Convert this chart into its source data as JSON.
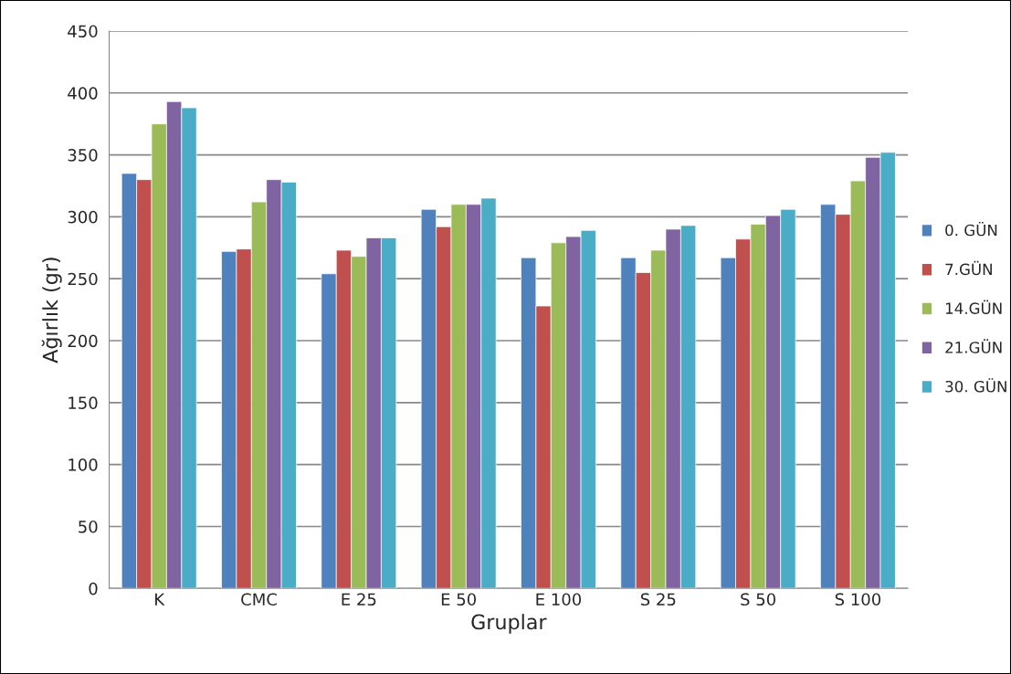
{
  "chart_data": {
    "type": "bar",
    "xlabel": "Gruplar",
    "ylabel": "Ağırlık (gr)",
    "categories": [
      "K",
      "CMC",
      "E 25",
      "E 50",
      "E 100",
      "S 25",
      "S 50",
      "S 100"
    ],
    "series": [
      {
        "name": "0. GÜN",
        "color": "#4f81bd",
        "values": [
          335,
          272,
          254,
          306,
          267,
          267,
          267,
          310
        ]
      },
      {
        "name": "7.GÜN",
        "color": "#c0504d",
        "values": [
          330,
          274,
          273,
          292,
          228,
          255,
          282,
          302
        ]
      },
      {
        "name": "14.GÜN",
        "color": "#9bbb59",
        "values": [
          375,
          312,
          268,
          310,
          279,
          273,
          294,
          329
        ]
      },
      {
        "name": "21.GÜN",
        "color": "#8064a2",
        "values": [
          393,
          330,
          283,
          310,
          284,
          290,
          301,
          348
        ]
      },
      {
        "name": "30. GÜN",
        "color": "#4bacc6",
        "values": [
          388,
          328,
          283,
          315,
          289,
          293,
          306,
          352
        ]
      }
    ],
    "ylim": [
      0,
      450
    ],
    "yticks": [
      0,
      50,
      100,
      150,
      200,
      250,
      300,
      350,
      400,
      450
    ],
    "grid": "y",
    "legend": "right"
  }
}
